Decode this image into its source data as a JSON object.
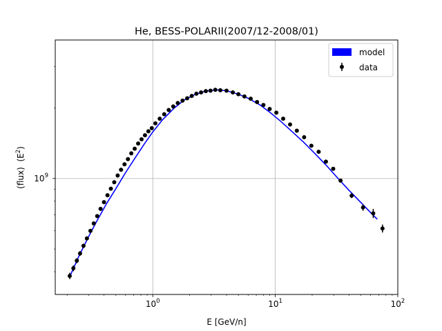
{
  "chart_data": {
    "type": "scatter",
    "title": "He, BESS-POLARII(2007/12-2008/01)",
    "xlabel": "E [GeV/n]",
    "ylabel": "(flux)  (E",
    "ylabel_sup": "2",
    "ylabel_close": ")",
    "x_scale": "log",
    "y_scale": "log",
    "xlim": [
      0.16,
      100
    ],
    "ylim": [
      320000000,
      3900000000
    ],
    "grid": true,
    "legend_position": "top-right",
    "x_ticks": [
      {
        "base": "10",
        "exp": "0",
        "value": 1
      },
      {
        "base": "10",
        "exp": "1",
        "value": 10
      },
      {
        "base": "10",
        "exp": "2",
        "value": 100
      }
    ],
    "y_ticks": [
      {
        "base": "10",
        "exp": "9",
        "value": 1000000000
      }
    ],
    "legend": [
      {
        "label": "model",
        "kind": "patch",
        "color": "#0000ff"
      },
      {
        "label": "data",
        "kind": "errorbar",
        "color": "#000000"
      }
    ],
    "series": [
      {
        "name": "model",
        "kind": "line",
        "color": "#0000ff",
        "x": [
          0.21,
          0.25,
          0.3,
          0.35,
          0.42,
          0.5,
          0.6,
          0.7,
          0.85,
          1.0,
          1.2,
          1.5,
          1.8,
          2.2,
          2.7,
          3.3,
          4.0,
          5.0,
          6.0,
          7.5,
          9.0,
          11.0,
          14.0,
          17.0,
          21.0,
          26.0,
          32.0,
          40.0,
          50.0,
          60.0,
          68.0
        ],
        "y": [
          381000000,
          467000000,
          566000000,
          659000000,
          782000000,
          905000000,
          1060000000,
          1200000000,
          1400000000,
          1580000000,
          1780000000,
          2000000000,
          2160000000,
          2280000000,
          2360000000,
          2390000000,
          2370000000,
          2290000000,
          2200000000,
          2060000000,
          1920000000,
          1760000000,
          1570000000,
          1430000000,
          1280000000,
          1140000000,
          1010000000,
          890000000,
          790000000,
          715000000,
          670000000
        ]
      },
      {
        "name": "data",
        "kind": "errorbar",
        "color": "#000000",
        "x": [
          0.21,
          0.225,
          0.24,
          0.255,
          0.272,
          0.29,
          0.31,
          0.33,
          0.352,
          0.375,
          0.4,
          0.427,
          0.455,
          0.485,
          0.517,
          0.551,
          0.588,
          0.627,
          0.668,
          0.712,
          0.76,
          0.81,
          0.864,
          0.921,
          0.982,
          1.05,
          1.14,
          1.24,
          1.35,
          1.47,
          1.6,
          1.75,
          1.91,
          2.08,
          2.27,
          2.48,
          2.71,
          2.96,
          3.24,
          3.56,
          4.0,
          4.5,
          5.0,
          5.6,
          6.3,
          7.1,
          8.0,
          9.0,
          10.2,
          11.6,
          13.2,
          15.0,
          17.2,
          19.7,
          22.6,
          25.9,
          29.7,
          34.1,
          42.0,
          52.0,
          63.0,
          75.0
        ],
        "y": [
          384000000,
          414000000,
          446000000,
          479000000,
          516000000,
          555000000,
          598000000,
          643000000,
          691000000,
          742000000,
          793000000,
          848000000,
          905000000,
          964000000,
          1030000000,
          1090000000,
          1150000000,
          1210000000,
          1280000000,
          1340000000,
          1410000000,
          1470000000,
          1530000000,
          1590000000,
          1640000000,
          1720000000,
          1800000000,
          1880000000,
          1960000000,
          2030000000,
          2100000000,
          2150000000,
          2200000000,
          2250000000,
          2300000000,
          2330000000,
          2360000000,
          2370000000,
          2390000000,
          2380000000,
          2370000000,
          2330000000,
          2290000000,
          2240000000,
          2190000000,
          2120000000,
          2060000000,
          1980000000,
          1910000000,
          1800000000,
          1700000000,
          1600000000,
          1500000000,
          1380000000,
          1300000000,
          1180000000,
          1100000000,
          980000000,
          845000000,
          752000000,
          710000000,
          612000000
        ],
        "yerr": [
          12000000,
          12000000,
          11000000,
          11000000,
          11000000,
          11000000,
          11000000,
          11000000,
          11000000,
          11000000,
          11000000,
          11000000,
          11000000,
          11000000,
          12000000,
          12000000,
          12000000,
          12000000,
          12000000,
          12000000,
          13000000,
          13000000,
          13000000,
          13000000,
          13000000,
          14000000,
          14000000,
          14000000,
          15000000,
          15000000,
          15000000,
          16000000,
          16000000,
          16000000,
          17000000,
          17000000,
          17000000,
          18000000,
          18000000,
          18000000,
          18000000,
          18000000,
          18000000,
          18000000,
          18000000,
          18000000,
          18000000,
          18000000,
          18000000,
          18000000,
          17000000,
          17000000,
          17000000,
          17000000,
          17000000,
          17000000,
          18000000,
          18000000,
          20000000,
          24000000,
          32000000,
          24000000
        ]
      }
    ]
  }
}
